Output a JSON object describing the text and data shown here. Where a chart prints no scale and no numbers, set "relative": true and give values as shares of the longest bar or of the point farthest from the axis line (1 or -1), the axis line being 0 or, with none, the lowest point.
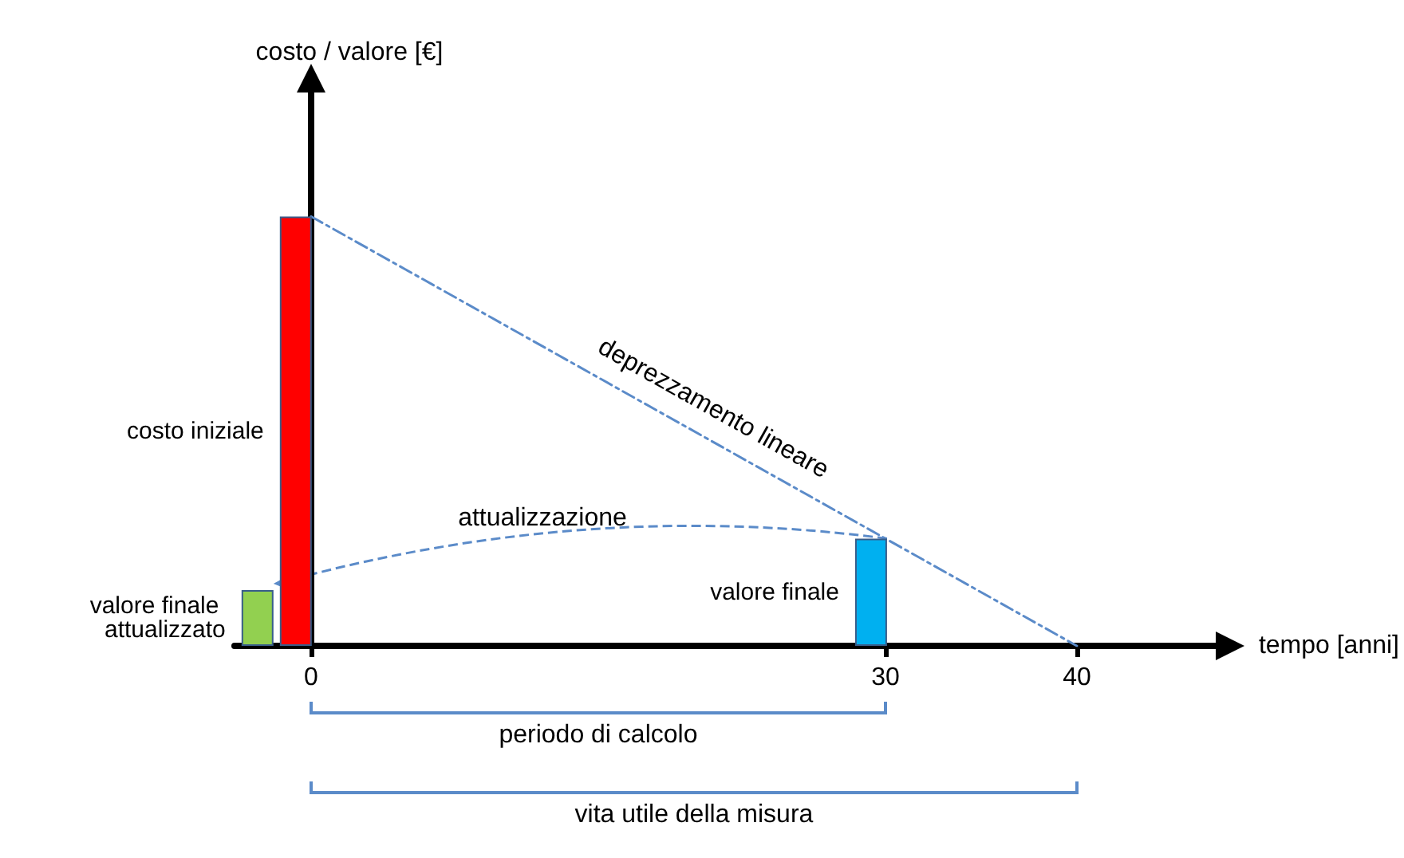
{
  "chart_data": {
    "type": "bar",
    "relative": true,
    "xlabel": "tempo [anni]",
    "xlim": [
      -4,
      47.5
    ],
    "xticks": [
      0,
      30,
      40
    ],
    "legend": false,
    "series": [
      {
        "name": "costo iniziale",
        "color": "#ff0000",
        "x": [
          -0.8
        ],
        "values": [
          1
        ]
      },
      {
        "name": "valore finale",
        "color": "#00b0f0",
        "x": [
          29.25
        ],
        "values": [
          0.25
        ]
      },
      {
        "name": "valore finale attualizzato",
        "color": "#92d050",
        "x": [
          -2.8
        ],
        "values": [
          0.13
        ]
      },
      {
        "name": "deprezzamento lineare",
        "type": "line",
        "color": "#5b8bc9",
        "line_style": "dashed",
        "marker": "none",
        "x": [
          0,
          40
        ],
        "values": [
          1,
          0
        ]
      }
    ],
    "annotations": [
      "costo / valore [€]",
      "attualizzazione",
      "periodo di calcolo",
      "vita utile della misura"
    ]
  }
}
